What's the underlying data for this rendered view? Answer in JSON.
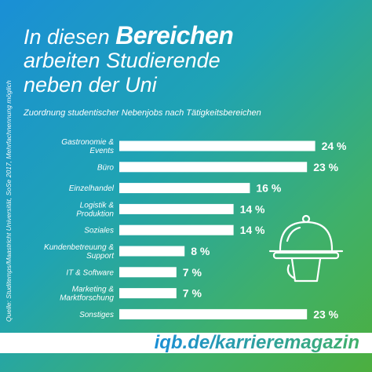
{
  "title": {
    "prefix": "In diesen ",
    "highlight": "Bereichen",
    "line2": "arbeiten Studierende",
    "line3": "neben der Uni"
  },
  "subtitle": "Zuordnung studentischer Nebenjobs nach Tätigkeitsbereichen",
  "source": "Quelle: Studitemps/Maastricht Universität, SoSe 2017, Mehrfachnennung möglich",
  "footer": "iqb.de/karrieremagazin",
  "icon": "cloche-serving-tray-icon",
  "colors": {
    "bar": "#ffffff",
    "footer_text": "#1a8fd6"
  },
  "chart_data": {
    "type": "bar",
    "orientation": "horizontal",
    "unit": "%",
    "categories": [
      "Gastronomie & Events",
      "Büro",
      "Einzelhandel",
      "Logistik & Produktion",
      "Soziales",
      "Kundenbetreuung & Support",
      "IT & Software",
      "Marketing & Marktforschung",
      "Sonstiges"
    ],
    "values": [
      24,
      23,
      16,
      14,
      14,
      8,
      7,
      7,
      23
    ],
    "labels": [
      "24 %",
      "23 %",
      "16 %",
      "14 %",
      "14 %",
      "8 %",
      "7 %",
      "7 %",
      "23 %"
    ]
  }
}
